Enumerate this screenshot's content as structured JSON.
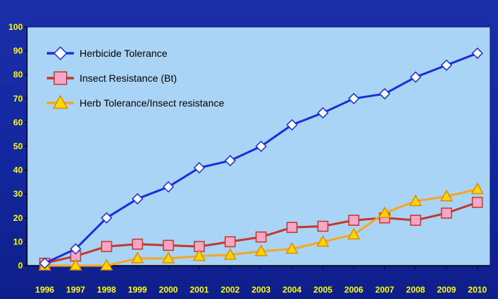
{
  "chart_data": {
    "type": "line",
    "title": "",
    "xlabel": "",
    "ylabel": "",
    "x": [
      1996,
      1997,
      1998,
      1999,
      2000,
      2001,
      2002,
      2003,
      2004,
      2005,
      2006,
      2007,
      2008,
      2009,
      2010
    ],
    "x_tick_labels": [
      "1996",
      "1997",
      "1998",
      "1999",
      "2000",
      "2001",
      "2002",
      "2003",
      "2004",
      "2005",
      "2006",
      "2007",
      "2008",
      "2009",
      "2010"
    ],
    "ylim": [
      0,
      100
    ],
    "y_ticks": [
      0,
      10,
      20,
      30,
      40,
      50,
      60,
      70,
      80,
      90,
      100
    ],
    "y_tick_labels": [
      "0",
      "10",
      "20",
      "30",
      "40",
      "50",
      "60",
      "70",
      "80",
      "90",
      "100"
    ],
    "grid": false,
    "legend_position": "top-left",
    "plot_background": "#a9d4f5",
    "page_background": "#1328a0",
    "tick_label_color": "#ffff00",
    "series": [
      {
        "name": "Herbicide Tolerance",
        "values": [
          1,
          7,
          20,
          28,
          33,
          41,
          44,
          50,
          59,
          64,
          70,
          72,
          79,
          84,
          89
        ],
        "line_color": "#1a2fd8",
        "marker": "diamond",
        "marker_fill": "#ffffff",
        "marker_stroke": "#1a2fd8"
      },
      {
        "name": "Insect Resistance (Bt)",
        "values": [
          1,
          4,
          8,
          9,
          8.5,
          8,
          10,
          12,
          16,
          16.5,
          19,
          20,
          19,
          22,
          26.5
        ],
        "line_color": "#c0392b",
        "marker": "square",
        "marker_fill": "#f7a6c7",
        "marker_stroke": "#c0392b"
      },
      {
        "name": "Herb Tolerance/Insect resistance",
        "values": [
          0,
          0,
          0,
          3,
          3,
          4,
          4.5,
          6,
          7,
          10,
          13,
          22,
          27,
          29,
          32
        ],
        "line_color": "#f5a623",
        "marker": "triangle",
        "marker_fill": "#ffd700",
        "marker_stroke": "#e08a00"
      }
    ]
  }
}
